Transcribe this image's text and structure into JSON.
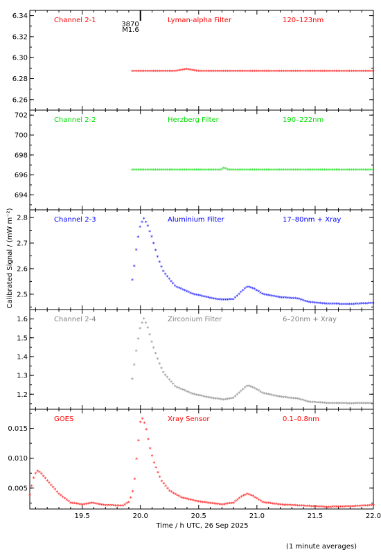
{
  "footer_note": "(1 minute averages)",
  "xlabel": "Time / h UTC, 26 Sep 2025",
  "ylabel": "Calibrated Signal / (mW m⁻²)",
  "flare_marker": {
    "time": 20.0,
    "number": "3870",
    "class": "M1.6"
  },
  "chart_data": [
    {
      "type": "scatter",
      "channel": "Channel 2-1",
      "filter": "Lyman-alpha Filter",
      "band": "120–123nm",
      "color": "#ff0000",
      "ylim": [
        6.25,
        6.345
      ],
      "yticks": [
        6.26,
        6.28,
        6.3,
        6.32,
        6.34
      ],
      "ytick_labels": [
        "6.26",
        "6.28",
        "6.30",
        "6.32",
        "6.34"
      ],
      "xlim": [
        19.05,
        22.0
      ],
      "segments": [
        [
          19.93,
          6.287
        ],
        [
          20.3,
          6.287
        ],
        [
          20.4,
          6.289
        ],
        [
          20.5,
          6.287
        ],
        [
          22.0,
          6.287
        ]
      ],
      "data_start": 19.93
    },
    {
      "type": "scatter",
      "channel": "Channel 2-2",
      "filter": "Herzberg Filter",
      "band": "190–222nm",
      "color": "#00dd00",
      "ylim": [
        692.5,
        702.5
      ],
      "yticks": [
        694,
        696,
        698,
        700,
        702
      ],
      "ytick_labels": [
        "694",
        "696",
        "698",
        "700",
        "702"
      ],
      "xlim": [
        19.05,
        22.0
      ],
      "segments": [
        [
          19.93,
          696.5
        ],
        [
          20.69,
          696.5
        ],
        [
          20.72,
          696.7
        ],
        [
          20.75,
          696.5
        ],
        [
          22.0,
          696.5
        ]
      ],
      "data_start": 19.93
    },
    {
      "type": "scatter",
      "channel": "Channel 2-3",
      "filter": "Aluminium Filter",
      "band": "17–80nm + Xray",
      "color": "#0000ff",
      "ylim": [
        2.44,
        2.83
      ],
      "yticks": [
        2.5,
        2.6,
        2.7,
        2.8
      ],
      "ytick_labels": [
        "2.5",
        "2.6",
        "2.7",
        "2.8"
      ],
      "xlim": [
        19.05,
        22.0
      ],
      "segments": [
        [
          19.93,
          2.555
        ],
        [
          19.95,
          2.62
        ],
        [
          19.97,
          2.7
        ],
        [
          20.0,
          2.77
        ],
        [
          20.03,
          2.795
        ],
        [
          20.06,
          2.77
        ],
        [
          20.1,
          2.72
        ],
        [
          20.15,
          2.64
        ],
        [
          20.2,
          2.585
        ],
        [
          20.3,
          2.53
        ],
        [
          20.45,
          2.5
        ],
        [
          20.6,
          2.485
        ],
        [
          20.7,
          2.477
        ],
        [
          20.8,
          2.48
        ],
        [
          20.87,
          2.51
        ],
        [
          20.92,
          2.53
        ],
        [
          20.97,
          2.522
        ],
        [
          21.05,
          2.5
        ],
        [
          21.2,
          2.487
        ],
        [
          21.35,
          2.482
        ],
        [
          21.45,
          2.468
        ],
        [
          21.6,
          2.462
        ],
        [
          21.8,
          2.46
        ],
        [
          22.0,
          2.465
        ]
      ],
      "data_start": 19.93
    },
    {
      "type": "scatter",
      "channel": "Channel 2-4",
      "filter": "Zirconium Filter",
      "band": "6–20nm + Xray",
      "color": "#808080",
      "ylim": [
        1.12,
        1.65
      ],
      "yticks": [
        1.2,
        1.3,
        1.4,
        1.5,
        1.6
      ],
      "ytick_labels": [
        "1.2",
        "1.3",
        "1.4",
        "1.5",
        "1.6"
      ],
      "xlim": [
        19.05,
        22.0
      ],
      "segments": [
        [
          19.93,
          1.28
        ],
        [
          19.95,
          1.37
        ],
        [
          19.97,
          1.46
        ],
        [
          20.0,
          1.56
        ],
        [
          20.03,
          1.6
        ],
        [
          20.06,
          1.56
        ],
        [
          20.1,
          1.47
        ],
        [
          20.15,
          1.38
        ],
        [
          20.2,
          1.31
        ],
        [
          20.3,
          1.24
        ],
        [
          20.45,
          1.2
        ],
        [
          20.6,
          1.18
        ],
        [
          20.72,
          1.17
        ],
        [
          20.8,
          1.18
        ],
        [
          20.87,
          1.22
        ],
        [
          20.92,
          1.245
        ],
        [
          20.97,
          1.235
        ],
        [
          21.05,
          1.205
        ],
        [
          21.2,
          1.185
        ],
        [
          21.35,
          1.175
        ],
        [
          21.45,
          1.158
        ],
        [
          21.6,
          1.152
        ],
        [
          21.8,
          1.15
        ],
        [
          22.0,
          1.152
        ]
      ],
      "data_start": 19.93
    },
    {
      "type": "scatter",
      "channel": "GOES",
      "filter": "Xray Sensor",
      "band": "0.1–0.8nm",
      "color": "#ff0000",
      "ylim": [
        0.0015,
        0.0182
      ],
      "yticks": [
        0.005,
        0.01,
        0.015
      ],
      "ytick_labels": [
        "0.005",
        "0.010",
        "0.015"
      ],
      "xlim": [
        19.05,
        22.0
      ],
      "segments": [
        [
          19.05,
          0.0038
        ],
        [
          19.08,
          0.0065
        ],
        [
          19.11,
          0.0079
        ],
        [
          19.14,
          0.0076
        ],
        [
          19.2,
          0.0062
        ],
        [
          19.3,
          0.004
        ],
        [
          19.4,
          0.0025
        ],
        [
          19.5,
          0.0022
        ],
        [
          19.58,
          0.0025
        ],
        [
          19.7,
          0.0021
        ],
        [
          19.85,
          0.002
        ],
        [
          19.9,
          0.0026
        ],
        [
          19.93,
          0.004
        ],
        [
          19.95,
          0.0065
        ],
        [
          19.97,
          0.0105
        ],
        [
          20.0,
          0.016
        ],
        [
          20.02,
          0.0167
        ],
        [
          20.05,
          0.0148
        ],
        [
          20.08,
          0.0118
        ],
        [
          20.12,
          0.009
        ],
        [
          20.18,
          0.0062
        ],
        [
          20.25,
          0.0045
        ],
        [
          20.35,
          0.0034
        ],
        [
          20.5,
          0.0027
        ],
        [
          20.7,
          0.0022
        ],
        [
          20.8,
          0.0025
        ],
        [
          20.87,
          0.0036
        ],
        [
          20.92,
          0.004
        ],
        [
          20.97,
          0.0036
        ],
        [
          21.05,
          0.0026
        ],
        [
          21.2,
          0.0022
        ],
        [
          21.4,
          0.002
        ],
        [
          21.6,
          0.0018
        ],
        [
          21.8,
          0.0019
        ],
        [
          22.0,
          0.0021
        ]
      ],
      "data_start": 19.05
    }
  ],
  "x_axis": {
    "ticks": [
      19.5,
      20.0,
      20.5,
      21.0,
      21.5,
      22.0
    ],
    "tick_labels": [
      "19.5",
      "20.0",
      "20.5",
      "21.0",
      "21.5",
      "22.0"
    ]
  }
}
